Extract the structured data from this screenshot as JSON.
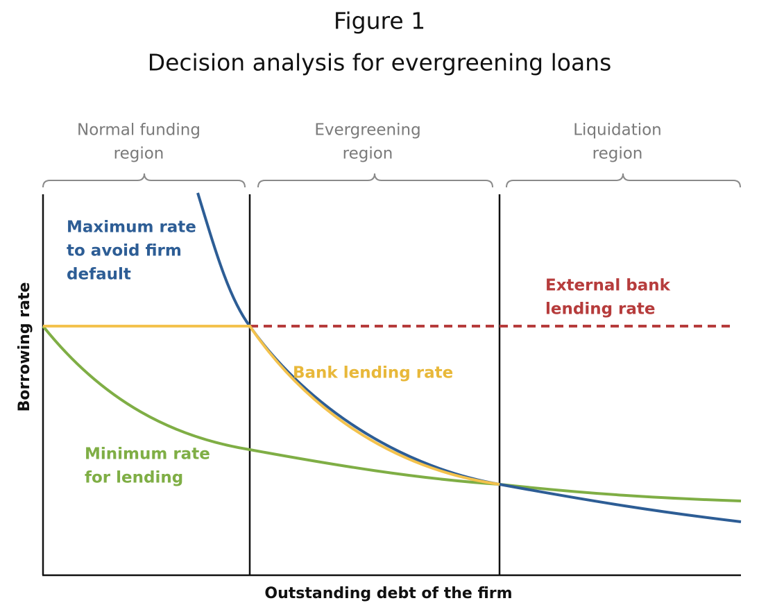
{
  "header": {
    "title": "Figure 1",
    "subtitle": "Decision analysis for evergreening loans"
  },
  "regions": [
    {
      "lines": [
        "Normal funding",
        "region"
      ]
    },
    {
      "lines": [
        "Evergreening",
        "region"
      ]
    },
    {
      "lines": [
        "Liquidation",
        "region"
      ]
    }
  ],
  "curve_labels": {
    "maximum_rate": [
      "Maximum rate",
      "to avoid firm",
      "default"
    ],
    "external_rate": [
      "External bank",
      "lending rate"
    ],
    "bank_rate": [
      "Bank lending rate"
    ],
    "minimum_rate": [
      "Minimum rate",
      "for lending"
    ]
  },
  "axes": {
    "y_label": "Borrowing rate",
    "x_label": "Outstanding debt of the firm"
  }
}
